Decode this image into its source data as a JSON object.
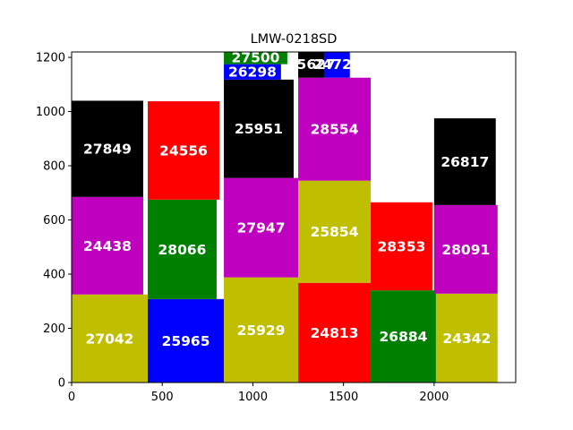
{
  "chart_data": {
    "type": "bar",
    "title": "LMW-0218SD",
    "xlabel": "",
    "ylabel": "",
    "xlim": [
      0,
      2450
    ],
    "ylim": [
      0,
      1220
    ],
    "xticks": [
      0,
      500,
      1000,
      1500,
      2000
    ],
    "yticks": [
      0,
      200,
      400,
      600,
      800,
      1000,
      1200
    ],
    "grid": false,
    "colors": {
      "olive": "#bfbf00",
      "blue": "#0000ff",
      "green": "#008000",
      "red": "#ff0000",
      "magenta": "#bf00bf",
      "black": "#000000"
    },
    "bars": [
      {
        "label": "27042",
        "x0": 0,
        "x1": 420,
        "y0": 0,
        "y1": 325,
        "color": "olive"
      },
      {
        "label": "24438",
        "x0": 0,
        "x1": 395,
        "y0": 325,
        "y1": 685,
        "color": "magenta"
      },
      {
        "label": "27849",
        "x0": 0,
        "x1": 395,
        "y0": 685,
        "y1": 1040,
        "color": "black"
      },
      {
        "label": "25965",
        "x0": 420,
        "x1": 840,
        "y0": 0,
        "y1": 308,
        "color": "blue"
      },
      {
        "label": "28066",
        "x0": 420,
        "x1": 800,
        "y0": 308,
        "y1": 675,
        "color": "green"
      },
      {
        "label": "24556",
        "x0": 420,
        "x1": 815,
        "y0": 675,
        "y1": 1038,
        "color": "red"
      },
      {
        "label": "25929",
        "x0": 840,
        "x1": 1250,
        "y0": 0,
        "y1": 388,
        "color": "olive"
      },
      {
        "label": "27947",
        "x0": 840,
        "x1": 1250,
        "y0": 388,
        "y1": 755,
        "color": "magenta"
      },
      {
        "label": "25951",
        "x0": 840,
        "x1": 1225,
        "y0": 755,
        "y1": 1118,
        "color": "black"
      },
      {
        "label": "26298",
        "x0": 840,
        "x1": 1155,
        "y0": 1118,
        "y1": 1175,
        "color": "blue"
      },
      {
        "label": "27500",
        "x0": 840,
        "x1": 1190,
        "y0": 1175,
        "y1": 1225,
        "color": "green"
      },
      {
        "label": "24813",
        "x0": 1250,
        "x1": 1650,
        "y0": 0,
        "y1": 368,
        "color": "red"
      },
      {
        "label": "25854",
        "x0": 1250,
        "x1": 1650,
        "y0": 368,
        "y1": 745,
        "color": "olive"
      },
      {
        "label": "28554",
        "x0": 1250,
        "x1": 1650,
        "y0": 745,
        "y1": 1125,
        "color": "magenta"
      },
      {
        "label": "25627",
        "x0": 1250,
        "x1": 1395,
        "y0": 1125,
        "y1": 1225,
        "color": "black"
      },
      {
        "label": "24728",
        "x0": 1395,
        "x1": 1535,
        "y0": 1125,
        "y1": 1225,
        "color": "blue"
      },
      {
        "label": "26884",
        "x0": 1650,
        "x1": 2010,
        "y0": 0,
        "y1": 340,
        "color": "green"
      },
      {
        "label": "28353",
        "x0": 1650,
        "x1": 1990,
        "y0": 340,
        "y1": 665,
        "color": "red"
      },
      {
        "label": "24342",
        "x0": 2010,
        "x1": 2350,
        "y0": 0,
        "y1": 328,
        "color": "olive"
      },
      {
        "label": "28091",
        "x0": 2000,
        "x1": 2350,
        "y0": 328,
        "y1": 655,
        "color": "magenta"
      },
      {
        "label": "26817",
        "x0": 2000,
        "x1": 2340,
        "y0": 655,
        "y1": 975,
        "color": "black"
      }
    ]
  }
}
